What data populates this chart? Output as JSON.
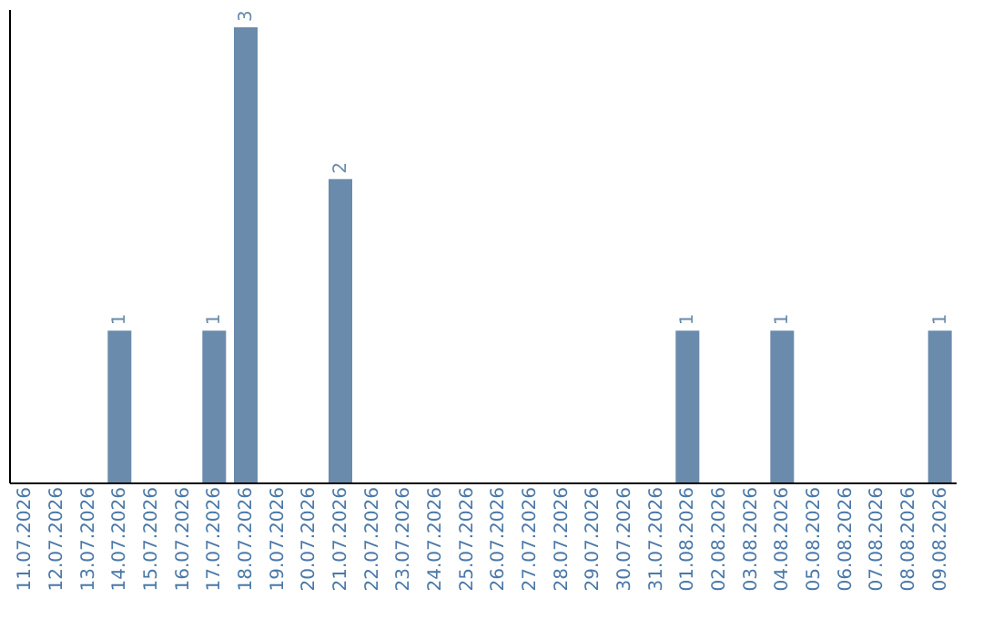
{
  "chart_data": {
    "type": "bar",
    "categories": [
      "11.07.2026",
      "12.07.2026",
      "13.07.2026",
      "14.07.2026",
      "15.07.2026",
      "16.07.2026",
      "17.07.2026",
      "18.07.2026",
      "19.07.2026",
      "20.07.2026",
      "21.07.2026",
      "22.07.2026",
      "23.07.2026",
      "24.07.2026",
      "25.07.2026",
      "26.07.2026",
      "27.07.2026",
      "28.07.2026",
      "29.07.2026",
      "30.07.2026",
      "31.07.2026",
      "01.08.2026",
      "02.08.2026",
      "03.08.2026",
      "04.08.2026",
      "05.08.2026",
      "06.08.2026",
      "07.08.2026",
      "08.08.2026",
      "09.08.2026"
    ],
    "values": [
      null,
      null,
      null,
      1,
      null,
      null,
      1,
      3,
      null,
      null,
      2,
      null,
      null,
      null,
      null,
      null,
      null,
      null,
      null,
      null,
      null,
      1,
      null,
      null,
      1,
      null,
      null,
      null,
      null,
      1
    ],
    "color": "#6a8bab",
    "ylim": [
      0,
      3.12
    ],
    "tick_labels": "x",
    "data_labels": true
  }
}
